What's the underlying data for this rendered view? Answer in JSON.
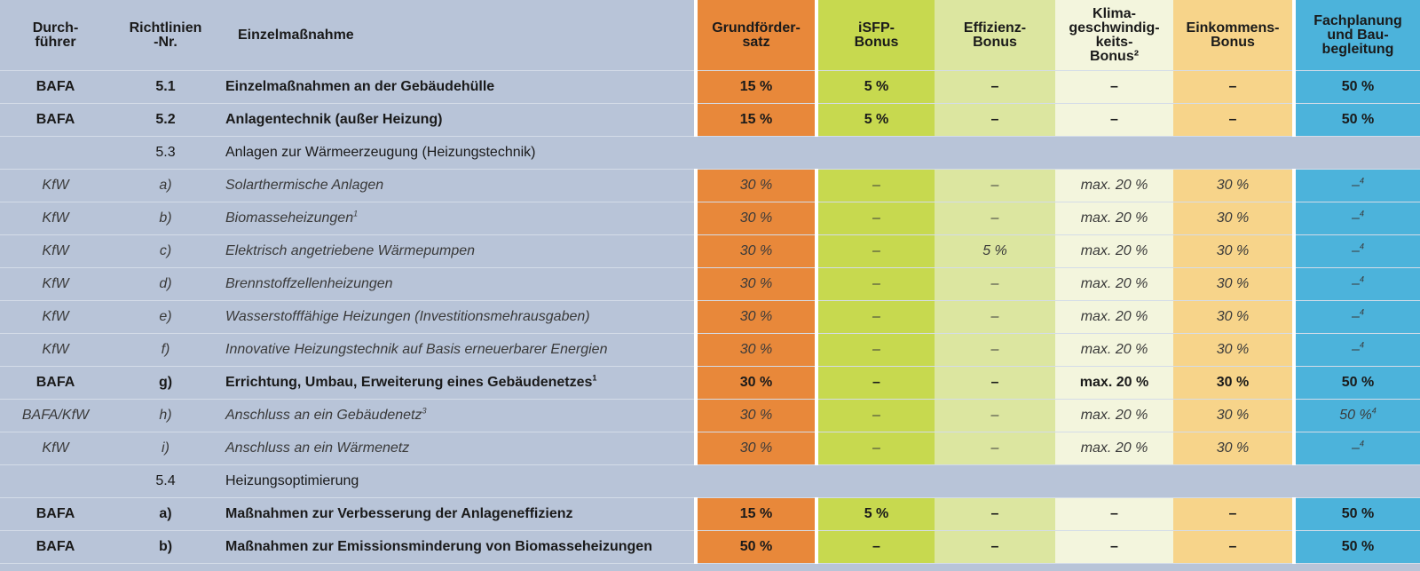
{
  "headers": {
    "implementer": "Durch-\nführer",
    "guideline_nr": "Richtlinien\n-Nr.",
    "measure": "Einzelmaßnahme",
    "base_rate": "Grundförder-\nsatz",
    "isfp": "iSFP-\nBonus",
    "efficiency": "Effizienz-\nBonus",
    "climate_speed": "Klima-\ngeschwindig-\nkeits-\nBonus²",
    "income": "Einkommens-\nBonus",
    "planning": "Fachplanung\nund Bau-\nbegleitung"
  },
  "rows": [
    {
      "type": "bold",
      "implementer": "BAFA",
      "nr": "5.1",
      "measure": "Einzelmaßnahmen an der Gebäudehülle",
      "measure_sup": "",
      "base_rate": "15 %",
      "isfp": "5 %",
      "efficiency": "–",
      "climate_speed": "–",
      "income": "–",
      "planning": "50 %",
      "planning_sup": ""
    },
    {
      "type": "bold",
      "implementer": "BAFA",
      "nr": "5.2",
      "measure": "Anlagentechnik (außer Heizung)",
      "measure_sup": "",
      "base_rate": "15 %",
      "isfp": "5 %",
      "efficiency": "–",
      "climate_speed": "–",
      "income": "–",
      "planning": "50 %",
      "planning_sup": ""
    },
    {
      "type": "group",
      "implementer": "",
      "nr": "5.3",
      "measure": "Anlagen zur Wärmeerzeugung (Heizungstechnik)"
    },
    {
      "type": "italic",
      "implementer": "KfW",
      "nr": "a)",
      "measure": "Solarthermische Anlagen",
      "measure_sup": "",
      "base_rate": "30 %",
      "isfp": "–",
      "efficiency": "–",
      "climate_speed": "max. 20 %",
      "income": "30 %",
      "planning": "–",
      "planning_sup": "4"
    },
    {
      "type": "italic",
      "implementer": "KfW",
      "nr": "b)",
      "measure": "Biomasseheizungen",
      "measure_sup": "1",
      "base_rate": "30 %",
      "isfp": "–",
      "efficiency": "–",
      "climate_speed": "max. 20 %",
      "income": "30 %",
      "planning": "–",
      "planning_sup": "4"
    },
    {
      "type": "italic",
      "implementer": "KfW",
      "nr": "c)",
      "measure": "Elektrisch angetriebene Wärmepumpen",
      "measure_sup": "",
      "base_rate": "30 %",
      "isfp": "–",
      "efficiency": "5 %",
      "climate_speed": "max. 20 %",
      "income": "30 %",
      "planning": "–",
      "planning_sup": "4"
    },
    {
      "type": "italic",
      "implementer": "KfW",
      "nr": "d)",
      "measure": "Brennstoffzellenheizungen",
      "measure_sup": "",
      "base_rate": "30 %",
      "isfp": "–",
      "efficiency": "–",
      "climate_speed": "max. 20 %",
      "income": "30 %",
      "planning": "–",
      "planning_sup": "4"
    },
    {
      "type": "italic",
      "implementer": "KfW",
      "nr": "e)",
      "measure": "Wasserstofffähige Heizungen (Investitionsmehrausgaben)",
      "measure_sup": "",
      "base_rate": "30 %",
      "isfp": "–",
      "efficiency": "–",
      "climate_speed": "max. 20 %",
      "income": "30 %",
      "planning": "–",
      "planning_sup": "4"
    },
    {
      "type": "italic",
      "implementer": "KfW",
      "nr": "f)",
      "measure": "Innovative Heizungstechnik auf Basis erneuerbarer Energien",
      "measure_sup": "",
      "base_rate": "30 %",
      "isfp": "–",
      "efficiency": "–",
      "climate_speed": "max. 20 %",
      "income": "30 %",
      "planning": "–",
      "planning_sup": "4"
    },
    {
      "type": "bold",
      "implementer": "BAFA",
      "nr": "g)",
      "measure": "Errichtung, Umbau, Erweiterung eines Gebäudenetzes",
      "measure_sup": "1",
      "base_rate": "30 %",
      "isfp": "–",
      "efficiency": "–",
      "climate_speed": "max. 20 %",
      "income": "30 %",
      "planning": "50 %",
      "planning_sup": ""
    },
    {
      "type": "italic",
      "implementer": "BAFA/KfW",
      "nr": "h)",
      "measure": "Anschluss an ein Gebäudenetz",
      "measure_sup": "3",
      "base_rate": "30 %",
      "isfp": "–",
      "efficiency": "–",
      "climate_speed": "max. 20 %",
      "income": "30 %",
      "planning": "50 %",
      "planning_sup": "4"
    },
    {
      "type": "italic",
      "implementer": "KfW",
      "nr": "i)",
      "measure": "Anschluss an ein Wärmenetz",
      "measure_sup": "",
      "base_rate": "30 %",
      "isfp": "–",
      "efficiency": "–",
      "climate_speed": "max. 20 %",
      "income": "30 %",
      "planning": "–",
      "planning_sup": "4"
    },
    {
      "type": "group",
      "implementer": "",
      "nr": "5.4",
      "measure": "Heizungsoptimierung"
    },
    {
      "type": "bold",
      "implementer": "BAFA",
      "nr": "a)",
      "measure": "Maßnahmen zur Verbesserung der Anlageneffizienz",
      "measure_sup": "",
      "base_rate": "15 %",
      "isfp": "5 %",
      "efficiency": "–",
      "climate_speed": "–",
      "income": "–",
      "planning": "50 %",
      "planning_sup": ""
    },
    {
      "type": "bold",
      "implementer": "BAFA",
      "nr": "b)",
      "measure": "Maßnahmen zur Emissionsminderung von Biomasseheizungen",
      "measure_sup": "",
      "base_rate": "50 %",
      "isfp": "–",
      "efficiency": "–",
      "climate_speed": "–",
      "income": "–",
      "planning": "50 %",
      "planning_sup": ""
    }
  ]
}
